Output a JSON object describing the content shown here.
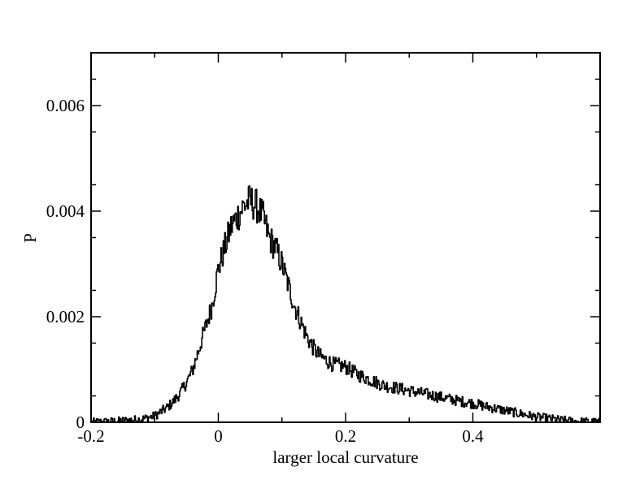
{
  "chart_data": {
    "type": "line",
    "title": "",
    "xlabel": "larger local curvature",
    "ylabel": "P",
    "xlim": [
      -0.2,
      0.6
    ],
    "ylim": [
      0,
      0.007
    ],
    "x_ticks": [
      -0.2,
      0,
      0.2,
      0.4
    ],
    "x_tick_labels": [
      "-0.2",
      "0",
      "0.2",
      "0.4"
    ],
    "y_ticks": [
      0,
      0.002,
      0.004,
      0.006
    ],
    "y_tick_labels": [
      "0",
      "0.002",
      "0.004",
      "0.006"
    ],
    "grid": false,
    "series_color": "#000000",
    "series": [
      {
        "x": [
          -0.2,
          -0.16,
          -0.12,
          -0.1,
          -0.09,
          -0.08,
          -0.07,
          -0.06,
          -0.05,
          -0.04,
          -0.03,
          -0.02,
          -0.01,
          0.0,
          0.01,
          0.02,
          0.03,
          0.04,
          0.05,
          0.06,
          0.07,
          0.08,
          0.09,
          0.1,
          0.11,
          0.12,
          0.13,
          0.14,
          0.15,
          0.16,
          0.18,
          0.2,
          0.22,
          0.24,
          0.26,
          0.28,
          0.3,
          0.32,
          0.34,
          0.36,
          0.38,
          0.4,
          0.42,
          0.44,
          0.46,
          0.48,
          0.5,
          0.52,
          0.54,
          0.56,
          0.58,
          0.6
        ],
        "values": [
          0.0,
          2e-05,
          6e-05,
          0.00012,
          0.0002,
          0.00028,
          0.0004,
          0.00055,
          0.00075,
          0.001,
          0.0014,
          0.0018,
          0.0022,
          0.0029,
          0.0033,
          0.0037,
          0.0039,
          0.0041,
          0.0042,
          0.0041,
          0.0039,
          0.0035,
          0.0033,
          0.003,
          0.0026,
          0.0022,
          0.0019,
          0.0016,
          0.0014,
          0.00125,
          0.0011,
          0.00105,
          0.0009,
          0.0008,
          0.0007,
          0.00065,
          0.0006,
          0.00055,
          0.0005,
          0.00045,
          0.0004,
          0.00036,
          0.0003,
          0.00025,
          0.0002,
          0.00015,
          0.0001,
          7e-05,
          4e-05,
          2e-05,
          1e-05,
          0.0
        ]
      }
    ]
  }
}
